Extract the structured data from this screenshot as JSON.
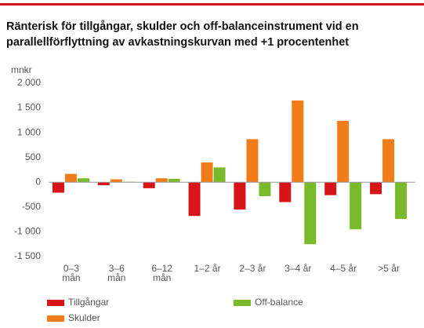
{
  "chart_data": {
    "type": "bar",
    "title": [
      "Ränterisk för tillgångar, skulder och off-balanceinstrument vid en",
      "parallellförflyttning av avkastningskurvan med +1 procentenhet"
    ],
    "ylabel": "mnkr",
    "categories": [
      "0–3\nmån",
      "3–6\nmån",
      "6–12\nmån",
      "1–2 år",
      "2–3 år",
      "3–4 år",
      "4–5 år",
      ">5 år"
    ],
    "series": [
      {
        "name": "Tillgångar",
        "color": "#d7141a",
        "values": [
          -210,
          -60,
          -120,
          -680,
          -550,
          -400,
          -260,
          -240
        ]
      },
      {
        "name": "Skulder",
        "color": "#f07d19",
        "values": [
          170,
          60,
          80,
          400,
          870,
          1650,
          1240,
          870
        ]
      },
      {
        "name": "Off-balance",
        "color": "#7ab929",
        "values": [
          80,
          10,
          70,
          300,
          -280,
          -1250,
          -950,
          -740
        ]
      }
    ],
    "ylim": [
      -1500,
      2000
    ],
    "yticks": [
      {
        "value": 2000,
        "label": "2 000"
      },
      {
        "value": 1500,
        "label": "1 500"
      },
      {
        "value": 1000,
        "label": "1 000"
      },
      500,
      0,
      -500,
      {
        "value": -1000,
        "label": "-1 000"
      },
      {
        "value": -1500,
        "label": "-1 500"
      }
    ]
  }
}
